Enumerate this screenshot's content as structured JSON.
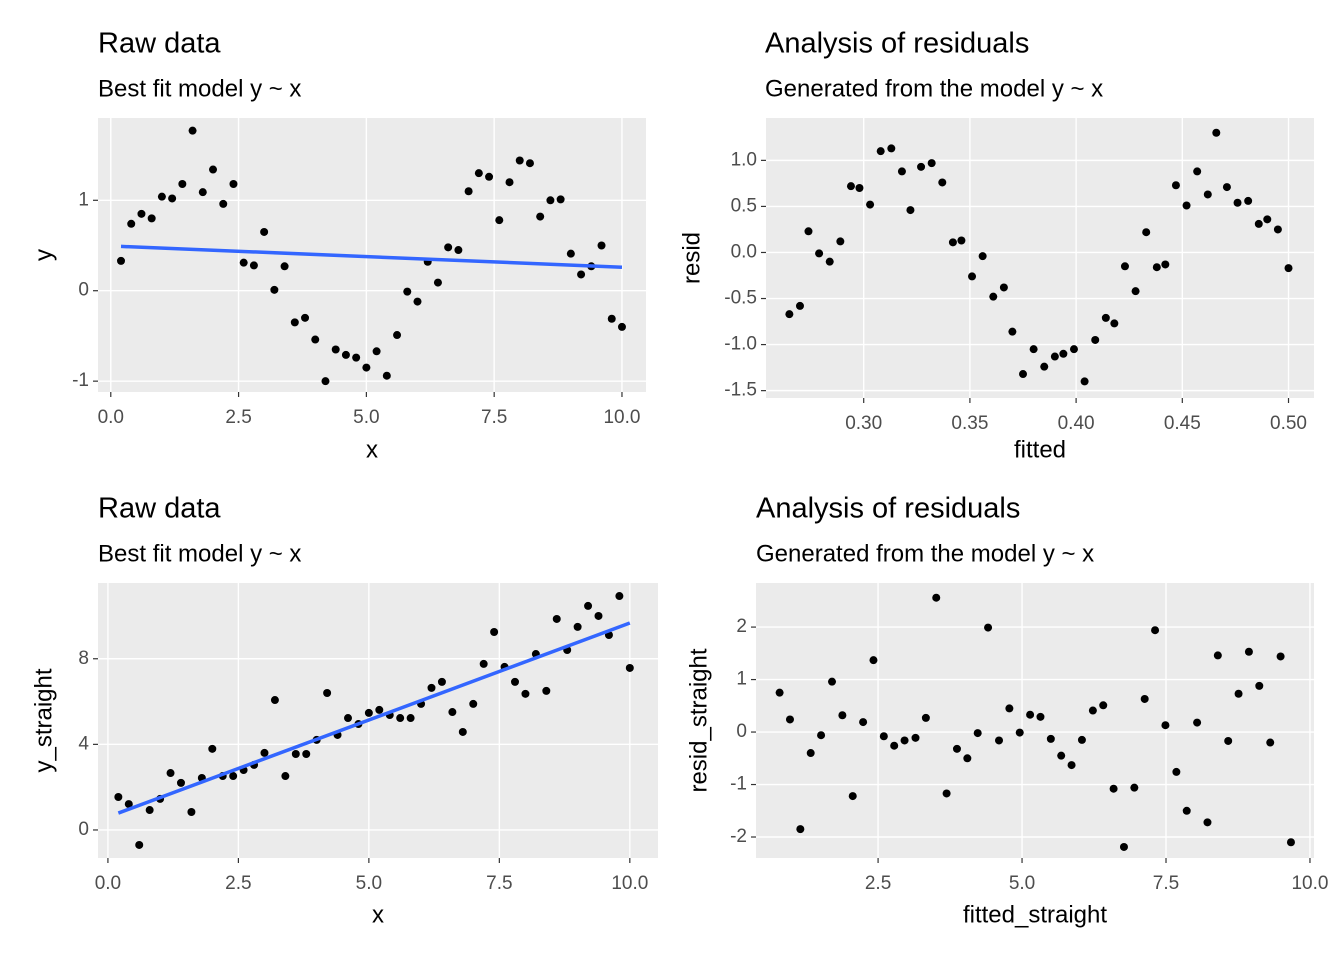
{
  "chart_data": [
    {
      "type": "scatter",
      "title": "Raw data",
      "subtitle": "Best fit model y ~ x",
      "x_label": "x",
      "y_label": "y",
      "color": "#000000",
      "grid": true,
      "x": [
        0.2,
        0.4,
        0.6,
        0.8,
        1.0,
        1.2,
        1.4,
        1.6,
        1.8,
        2.0,
        2.2,
        2.4,
        2.6,
        2.8,
        3.0,
        3.2,
        3.4,
        3.6,
        3.8,
        4.0,
        4.2,
        4.4,
        4.6,
        4.8,
        5.0,
        5.2,
        5.4,
        5.6,
        5.8,
        6.0,
        6.2,
        6.4,
        6.6,
        6.8,
        7.0,
        7.2,
        7.4,
        7.6,
        7.8,
        8.0,
        8.2,
        8.4,
        8.6,
        8.8,
        9.0,
        9.2,
        9.4,
        9.6,
        9.8,
        10.0
      ],
      "values": [
        0.33,
        0.74,
        0.85,
        0.8,
        1.04,
        1.02,
        1.18,
        1.77,
        1.09,
        1.34,
        0.96,
        1.18,
        0.31,
        0.28,
        0.65,
        0.01,
        0.27,
        -0.35,
        -0.3,
        -0.54,
        -1.0,
        -0.65,
        -0.71,
        -0.74,
        -0.85,
        -0.67,
        -0.94,
        -0.49,
        -0.01,
        -0.12,
        0.32,
        0.09,
        0.48,
        0.45,
        1.1,
        1.3,
        1.26,
        0.78,
        1.2,
        1.44,
        1.41,
        0.82,
        1.0,
        1.01,
        0.41,
        0.18,
        0.27,
        0.5,
        -0.31,
        -0.4
      ],
      "fit": {
        "x": [
          0.2,
          10.0
        ],
        "values": [
          0.49,
          0.26
        ],
        "color": "#3366ff"
      },
      "xlim": [
        -0.25,
        10.47
      ],
      "ylim": [
        -1.12,
        1.91
      ],
      "xticks": [
        {
          "value": 0,
          "label": "0.0"
        },
        2.5,
        {
          "value": 5,
          "label": "5.0"
        },
        7.5,
        {
          "value": 10,
          "label": "10.0"
        }
      ],
      "yticks": [
        -1,
        0,
        1
      ]
    },
    {
      "type": "scatter",
      "title": "Analysis of residuals",
      "subtitle": "Generated from the model y ~ x",
      "x_label": "fitted",
      "y_label": "resid",
      "color": "#000000",
      "grid": true,
      "x": [
        0.5,
        0.495,
        0.49,
        0.486,
        0.481,
        0.476,
        0.471,
        0.466,
        0.462,
        0.457,
        0.452,
        0.447,
        0.442,
        0.438,
        0.433,
        0.428,
        0.423,
        0.418,
        0.414,
        0.409,
        0.404,
        0.399,
        0.394,
        0.39,
        0.385,
        0.38,
        0.375,
        0.37,
        0.366,
        0.361,
        0.356,
        0.351,
        0.346,
        0.342,
        0.337,
        0.332,
        0.327,
        0.322,
        0.318,
        0.313,
        0.308,
        0.303,
        0.298,
        0.294,
        0.289,
        0.284,
        0.279,
        0.274,
        0.27,
        0.265
      ],
      "values": [
        -0.17,
        0.25,
        0.36,
        0.31,
        0.56,
        0.54,
        0.71,
        1.3,
        0.63,
        0.88,
        0.51,
        0.73,
        -0.13,
        -0.16,
        0.22,
        -0.42,
        -0.15,
        -0.77,
        -0.71,
        -0.95,
        -1.4,
        -1.05,
        -1.1,
        -1.13,
        -1.24,
        -1.05,
        -1.32,
        -0.86,
        -0.38,
        -0.48,
        -0.04,
        -0.26,
        0.13,
        0.11,
        0.76,
        0.97,
        0.93,
        0.46,
        0.88,
        1.13,
        1.1,
        0.52,
        0.7,
        0.72,
        0.12,
        -0.1,
        -0.01,
        0.23,
        -0.58,
        -0.67
      ],
      "xlim": [
        0.254,
        0.512
      ],
      "ylim": [
        -1.58,
        1.46
      ],
      "xticks": [
        {
          "value": 0.3,
          "label": "0.30"
        },
        0.35,
        {
          "value": 0.4,
          "label": "0.40"
        },
        0.45,
        {
          "value": 0.5,
          "label": "0.50"
        }
      ],
      "yticks": [
        -1.5,
        {
          "value": -1,
          "label": "-1.0"
        },
        -0.5,
        {
          "value": 0,
          "label": "0.0"
        },
        0.5,
        {
          "value": 1,
          "label": "1.0"
        }
      ]
    },
    {
      "type": "scatter",
      "title": "Raw data",
      "subtitle": "Best fit model y ~ x",
      "x_label": "x",
      "y_label": "y_straight",
      "color": "#000000",
      "grid": true,
      "x": [
        0.2,
        0.4,
        0.6,
        0.8,
        1.0,
        1.2,
        1.4,
        1.6,
        1.8,
        2.0,
        2.2,
        2.4,
        2.6,
        2.8,
        3.0,
        3.2,
        3.4,
        3.6,
        3.8,
        4.0,
        4.2,
        4.4,
        4.6,
        4.8,
        5.0,
        5.2,
        5.4,
        5.6,
        5.8,
        6.0,
        6.2,
        6.4,
        6.6,
        6.8,
        7.0,
        7.2,
        7.4,
        7.6,
        7.8,
        8.0,
        8.2,
        8.4,
        8.6,
        8.8,
        9.0,
        9.2,
        9.4,
        9.6,
        9.8,
        10.0
      ],
      "values": [
        1.54,
        1.21,
        -0.7,
        0.93,
        1.45,
        2.66,
        2.2,
        0.84,
        2.43,
        3.79,
        2.52,
        2.52,
        2.8,
        3.04,
        3.6,
        6.07,
        2.52,
        3.55,
        3.55,
        4.21,
        6.4,
        4.44,
        5.23,
        4.95,
        5.47,
        5.61,
        5.37,
        5.23,
        5.23,
        5.89,
        6.64,
        6.92,
        5.51,
        4.58,
        5.89,
        7.76,
        9.25,
        7.62,
        6.92,
        6.36,
        8.22,
        6.5,
        9.86,
        8.41,
        9.49,
        10.47,
        10.0,
        9.11,
        10.93,
        7.57
      ],
      "fit": {
        "x": [
          0.2,
          10.0
        ],
        "values": [
          0.79,
          9.67
        ],
        "color": "#3366ff"
      },
      "xlim": [
        -0.19,
        10.54
      ],
      "ylim": [
        -1.31,
        11.54
      ],
      "xticks": [
        {
          "value": 0,
          "label": "0.0"
        },
        2.5,
        {
          "value": 5,
          "label": "5.0"
        },
        7.5,
        {
          "value": 10,
          "label": "10.0"
        }
      ],
      "yticks": [
        0,
        4,
        8
      ]
    },
    {
      "type": "scatter",
      "title": "Analysis of residuals",
      "subtitle": "Generated from the model y ~ x",
      "x_label": "fitted_straight",
      "y_label": "resid_straight",
      "color": "#000000",
      "grid": true,
      "x": [
        0.79,
        0.97,
        1.15,
        1.33,
        1.51,
        1.7,
        1.88,
        2.06,
        2.24,
        2.42,
        2.6,
        2.78,
        2.96,
        3.15,
        3.33,
        3.51,
        3.69,
        3.87,
        4.05,
        4.23,
        4.41,
        4.6,
        4.78,
        4.96,
        5.14,
        5.32,
        5.5,
        5.68,
        5.86,
        6.04,
        6.23,
        6.41,
        6.59,
        6.77,
        6.95,
        7.13,
        7.31,
        7.49,
        7.68,
        7.86,
        8.04,
        8.22,
        8.4,
        8.58,
        8.76,
        8.94,
        9.12,
        9.31,
        9.49,
        9.67
      ],
      "values": [
        0.75,
        0.24,
        -1.85,
        -0.4,
        -0.06,
        0.96,
        0.32,
        -1.22,
        0.19,
        1.37,
        -0.08,
        -0.26,
        -0.16,
        -0.11,
        0.27,
        2.56,
        -1.17,
        -0.32,
        -0.5,
        -0.02,
        1.99,
        -0.16,
        0.45,
        -0.01,
        0.33,
        0.29,
        -0.13,
        -0.45,
        -0.63,
        -0.15,
        0.41,
        0.51,
        -1.08,
        -2.19,
        -1.06,
        0.63,
        1.94,
        0.13,
        -0.76,
        -1.5,
        0.18,
        -1.72,
        1.46,
        -0.17,
        0.73,
        1.53,
        0.88,
        -0.2,
        1.44,
        -2.1
      ],
      "xlim": [
        0.38,
        10.07
      ],
      "ylim": [
        -2.4,
        2.84
      ],
      "xticks": [
        2.5,
        {
          "value": 5,
          "label": "5.0"
        },
        7.5,
        {
          "value": 10,
          "label": "10.0"
        }
      ],
      "yticks": [
        -2,
        -1,
        0,
        1,
        2
      ]
    }
  ]
}
